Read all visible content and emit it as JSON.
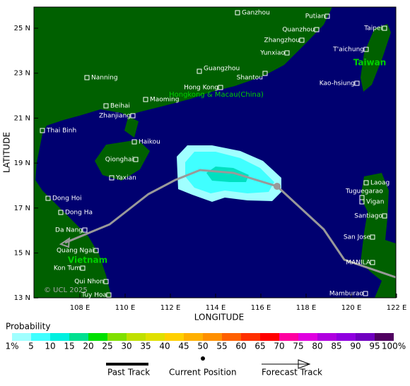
{
  "axes": {
    "x_label": "LONGITUDE",
    "y_label": "LATITUDE",
    "x_ticks": [
      "108 E",
      "110 E",
      "112 E",
      "114 E",
      "116 E",
      "118 E",
      "120 E",
      "122 E"
    ],
    "y_ticks": [
      "25 N",
      "23 N",
      "21 N",
      "19 N",
      "17 N",
      "15 N",
      "13 N"
    ]
  },
  "places": [
    "Ganzhou",
    "Putian",
    "Quanzhou",
    "Taipei",
    "Zhangzhou",
    "Yunxiao",
    "T'aichung",
    "Guangzhou",
    "Nanning",
    "Shantou",
    "Kao-hsiung",
    "Hong Kong",
    "Maoming",
    "Beihai",
    "Zhanjiang",
    "Thai Binh",
    "Haikou",
    "Qionghai",
    "Yaxian",
    "Laoag",
    "Tuguegarao",
    "Vigan",
    "Dong Hoi",
    "Dong Ha",
    "Santiago",
    "Da Nang",
    "San Jose",
    "Quang Ngai",
    "MANILA",
    "Kon Tum",
    "Qui Nhon",
    "Mamburao",
    "Tuy Hoa"
  ],
  "regions": [
    "Taiwan",
    "Hongkong & Macau(China)",
    "Vietnam"
  ],
  "copyright": "© UCL 2025",
  "legend": {
    "title": "Probability",
    "labels": [
      "1%",
      "5",
      "10",
      "15",
      "20",
      "25",
      "30",
      "35",
      "40",
      "45",
      "50",
      "55",
      "60",
      "65",
      "70",
      "75",
      "80",
      "85",
      "90",
      "95",
      "100%"
    ],
    "items": [
      "Past Track",
      "Current Position",
      "Forecast Track"
    ]
  }
}
